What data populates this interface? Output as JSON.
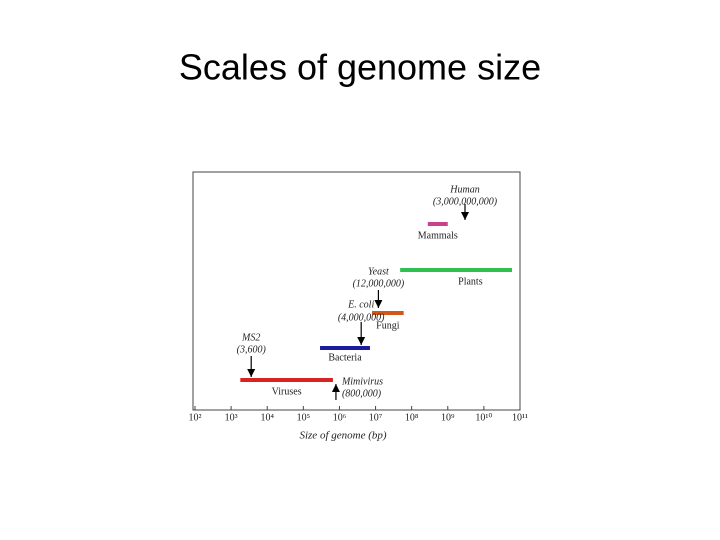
{
  "chart_data": {
    "type": "range_bar",
    "title": "Scales of genome size",
    "x_label": "Size of genome (bp)",
    "xscale": "log",
    "xlim": [
      100,
      100000000000
    ],
    "xticks": [
      {
        "value": 100,
        "label": "10²"
      },
      {
        "value": 1000,
        "label": "10³"
      },
      {
        "value": 10000,
        "label": "10⁴"
      },
      {
        "value": 100000,
        "label": "10⁵"
      },
      {
        "value": 1000000,
        "label": "10⁶"
      },
      {
        "value": 10000000,
        "label": "10⁷"
      },
      {
        "value": 100000000,
        "label": "10⁸"
      },
      {
        "value": 1000000000,
        "label": "10⁹"
      },
      {
        "value": 10000000000,
        "label": "10¹⁰"
      },
      {
        "value": 100000000000,
        "label": "10¹¹"
      }
    ],
    "series": [
      {
        "name": "Mammals",
        "color": "#c8428f",
        "values": [
          280000000,
          1000000000
        ]
      },
      {
        "name": "Plants",
        "color": "#2fc04f",
        "values": [
          48000000,
          60000000000
        ]
      },
      {
        "name": "Fungi",
        "color": "#d3561c",
        "values": [
          8000000,
          60000000
        ]
      },
      {
        "name": "Bacteria",
        "color": "#1b1ba0",
        "values": [
          290000,
          7000000
        ]
      },
      {
        "name": "Viruses",
        "color": "#d92222",
        "values": [
          1800,
          660000
        ]
      }
    ],
    "annotations": [
      {
        "text": "Human",
        "value_label": "(3,000,000,000)",
        "x": 3000000000,
        "arrow": "down"
      },
      {
        "text": "Yeast",
        "value_label": "(12,000,000)",
        "x": 12000000,
        "arrow": "down"
      },
      {
        "text": "E. coli",
        "value_label": "(4,000,000)",
        "x": 4000000,
        "arrow": "down"
      },
      {
        "text": "MS2",
        "value_label": "(3,600)",
        "x": 3600,
        "arrow": "down"
      },
      {
        "text": "Mimivirus",
        "value_label": "(800,000)",
        "x": 800000,
        "arrow": "up"
      }
    ]
  }
}
